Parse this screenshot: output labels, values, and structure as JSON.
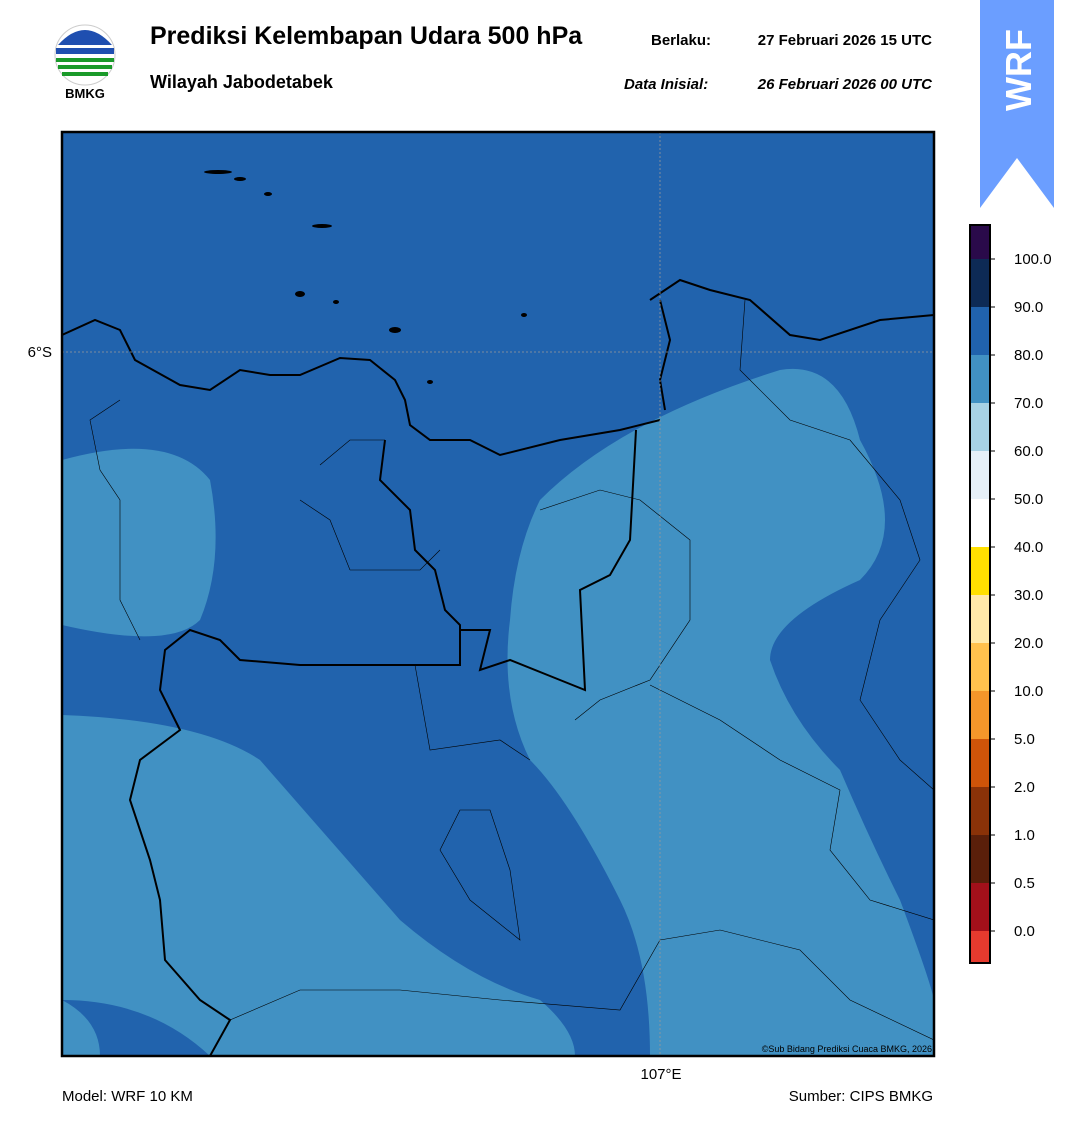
{
  "header": {
    "logo_text": "BMKG",
    "title": "Prediksi Kelembapan Udara 500 hPa",
    "subtitle": "Wilayah Jabodetabek",
    "valid_label": "Berlaku:",
    "valid_time": "27 Februari 2026 15 UTC",
    "init_label": "Data Inisial:",
    "init_time": "26 Februari 2026 00 UTC",
    "badge": "WRF"
  },
  "map": {
    "lat_label": "6°S",
    "lon_label": "107°E",
    "copyright": "©Sub Bidang Prediksi Cuaca BMKG, 2026"
  },
  "colorbar": {
    "levels": [
      "0.0",
      "0.5",
      "1.0",
      "2.0",
      "5.0",
      "10.0",
      "20.0",
      "30.0",
      "40.0",
      "50.0",
      "60.0",
      "70.0",
      "80.0",
      "90.0",
      "100.0"
    ],
    "colors": [
      "#e53a2e",
      "#a3101a",
      "#5a1f0a",
      "#8a3208",
      "#cf5409",
      "#f5962a",
      "#ffc14d",
      "#ffe9a8",
      "#ffe000",
      "#ffffff",
      "#e6f0f8",
      "#a7d1e4",
      "#4191c3",
      "#2062ad",
      "#0d2a55",
      "#2a0a4a"
    ]
  },
  "footer": {
    "model": "Model: WRF 10 KM",
    "source": "Sumber: CIPS BMKG"
  }
}
